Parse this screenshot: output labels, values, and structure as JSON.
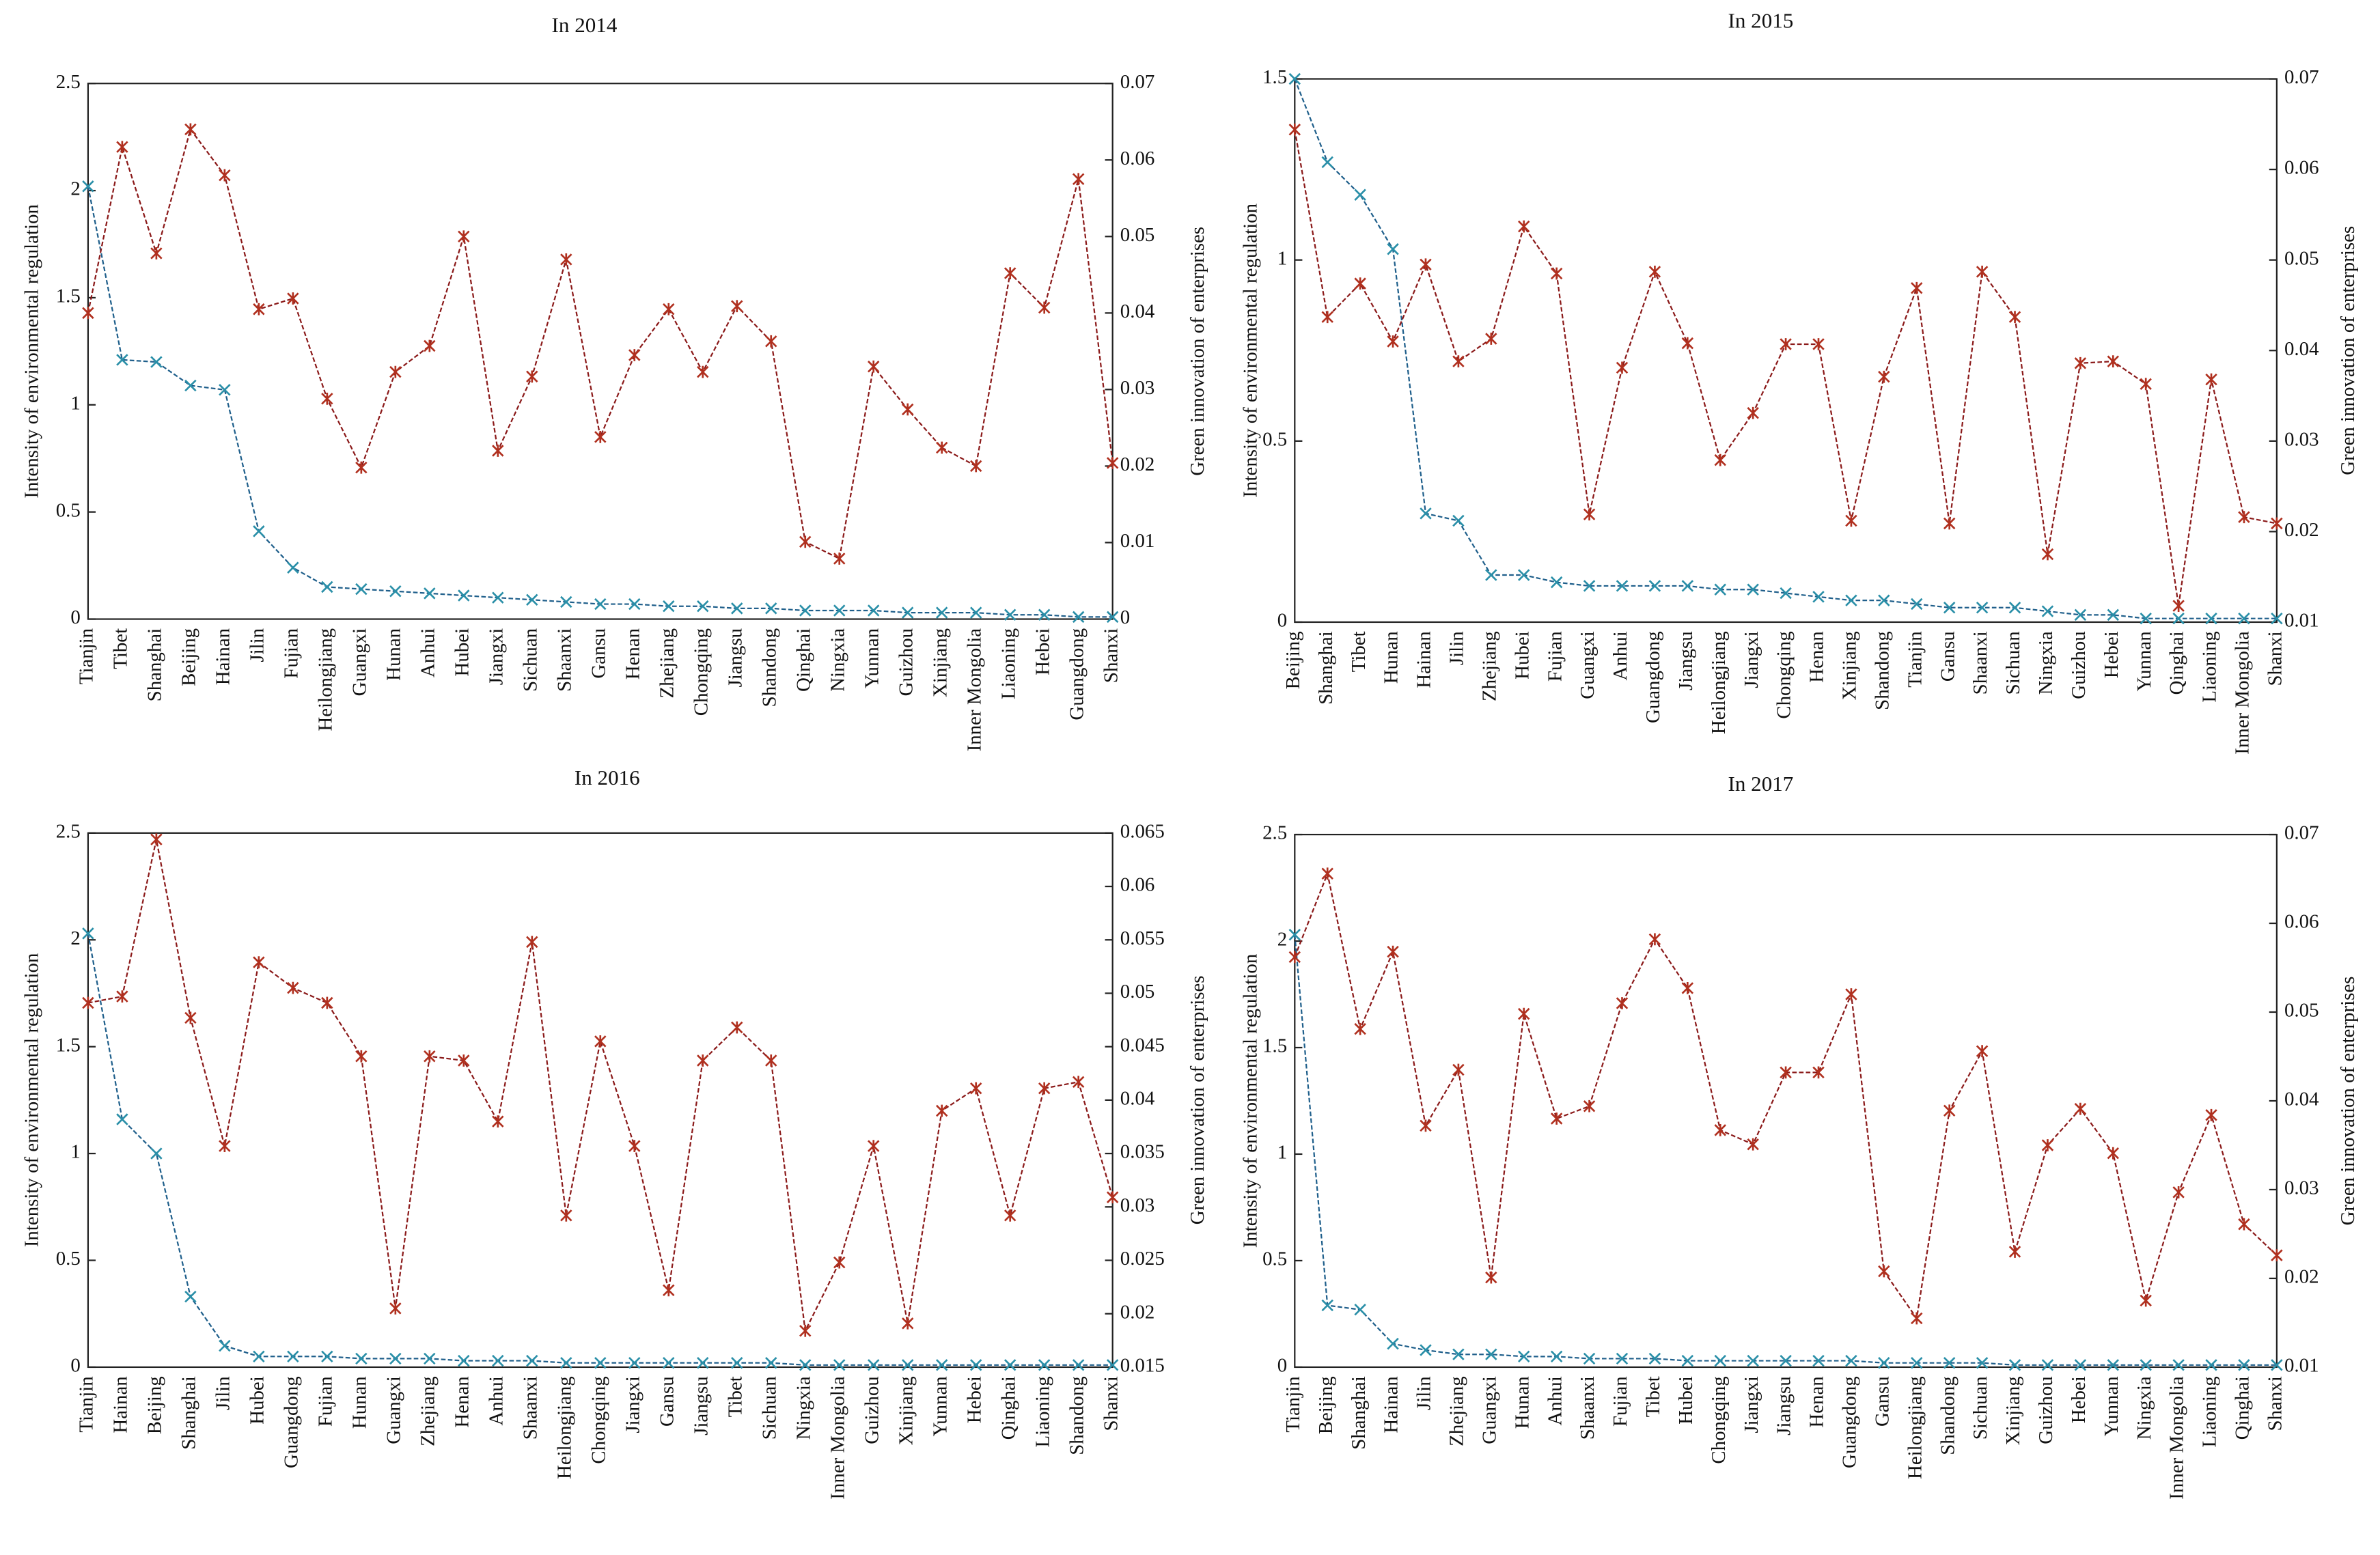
{
  "chart_data": [
    {
      "type": "line",
      "title": "In 2014",
      "ylabel": "Intensity of environmental regulation",
      "y2label": "Green innovation of enterprises",
      "categories": [
        "Tianjin",
        "Tibet",
        "Shanghai",
        "Beijing",
        "Hainan",
        "Jilin",
        "Fujian",
        "Heilongjiang",
        "Guangxi",
        "Hunan",
        "Anhui",
        "Hubei",
        "Jiangxi",
        "Sichuan",
        "Shaanxi",
        "Gansu",
        "Henan",
        "Zhejiang",
        "Chongqing",
        "Jiangsu",
        "Shandong",
        "Qinghai",
        "Ningxia",
        "Yunnan",
        "Guizhou",
        "Xinjiang",
        "Inner Mongolia",
        "Liaoning",
        "Hebei",
        "Guangdong",
        "Shanxi"
      ],
      "series": [
        {
          "color": "#1f5f8b",
          "values": [
            2.02,
            1.21,
            1.2,
            1.09,
            1.07,
            0.41,
            0.24,
            0.15,
            0.14,
            0.13,
            0.12,
            0.11,
            0.1,
            0.09,
            0.08,
            0.07,
            0.07,
            0.06,
            0.06,
            0.05,
            0.05,
            0.04,
            0.04,
            0.04,
            0.03,
            0.03,
            0.03,
            0.02,
            0.02,
            0.01,
            0.01
          ]
        },
        {
          "color": "#8b1a1a",
          "axis": "y2",
          "values": [
            0.04,
            0.0617,
            0.0478,
            0.064,
            0.058,
            0.0405,
            0.0419,
            0.0288,
            0.0198,
            0.0323,
            0.0357,
            0.05,
            0.022,
            0.0317,
            0.047,
            0.0238,
            0.0345,
            0.0405,
            0.0323,
            0.0409,
            0.0363,
            0.0101,
            0.0079,
            0.033,
            0.0274,
            0.0224,
            0.02,
            0.0452,
            0.0407,
            0.0575,
            0.0204
          ]
        }
      ],
      "ylim": [
        0,
        2.5
      ],
      "yticks": [
        0,
        0.5,
        1,
        1.5,
        2,
        2.5
      ],
      "y2lim": [
        0,
        0.07
      ],
      "y2ticks": [
        0,
        0.01,
        0.02,
        0.03,
        0.04,
        0.05,
        0.06,
        0.07
      ]
    },
    {
      "type": "line",
      "title": "In 2015",
      "ylabel": "Intensity of environmental regulation",
      "y2label": "Green innovation of enterprises",
      "categories": [
        "Beijing",
        "Shanghai",
        "Tibet",
        "Hunan",
        "Hainan",
        "Jilin",
        "Zhejiang",
        "Hubei",
        "Fujian",
        "Guangxi",
        "Anhui",
        "Guangdong",
        "Jiangsu",
        "Heilongjiang",
        "Jiangxi",
        "Chongqing",
        "Henan",
        "Xinjiang",
        "Shandong",
        "Tianjin",
        "Gansu",
        "Shaanxi",
        "Sichuan",
        "Ningxia",
        "Guizhou",
        "Hebei",
        "Yunnan",
        "Qinghai",
        "Liaoning",
        "Inner Mongolia",
        "Shanxi"
      ],
      "series": [
        {
          "color": "#1f5f8b",
          "values": [
            1.5,
            1.27,
            1.18,
            1.03,
            0.3,
            0.28,
            0.13,
            0.13,
            0.11,
            0.1,
            0.1,
            0.1,
            0.1,
            0.09,
            0.09,
            0.08,
            0.07,
            0.06,
            0.06,
            0.05,
            0.04,
            0.04,
            0.04,
            0.03,
            0.02,
            0.02,
            0.01,
            0.01,
            0.01,
            0.01,
            0.01
          ]
        },
        {
          "color": "#8b1a1a",
          "axis": "y2",
          "values": [
            0.0644,
            0.0437,
            0.0474,
            0.041,
            0.0495,
            0.0388,
            0.0413,
            0.0537,
            0.0485,
            0.0219,
            0.0381,
            0.0487,
            0.0408,
            0.0279,
            0.0331,
            0.0407,
            0.0407,
            0.0212,
            0.0371,
            0.0469,
            0.0209,
            0.0487,
            0.0437,
            0.0175,
            0.0386,
            0.0388,
            0.0363,
            0.0118,
            0.0368,
            0.0216,
            0.0209
          ]
        }
      ],
      "ylim": [
        0,
        1.5
      ],
      "yticks": [
        0,
        0.5,
        1,
        1.5
      ],
      "y2lim": [
        0.01,
        0.07
      ],
      "y2ticks": [
        0.01,
        0.02,
        0.03,
        0.04,
        0.05,
        0.06,
        0.07
      ]
    },
    {
      "type": "line",
      "title": "In 2016",
      "ylabel": "Intensity of environmental regulation",
      "y2label": "Green innovation of enterprises",
      "categories": [
        "Tianjin",
        "Hainan",
        "Beijing",
        "Shanghai",
        "Jilin",
        "Hubei",
        "Guangdong",
        "Fujian",
        "Hunan",
        "Guangxi",
        "Zhejiang",
        "Henan",
        "Anhui",
        "Shaanxi",
        "Heilongjiang",
        "Chongqing",
        "Jiangxi",
        "Gansu",
        "Jiangsu",
        "Tibet",
        "Sichuan",
        "Ningxia",
        "Inner Mongolia",
        "Guizhou",
        "Xinjiang",
        "Yunnan",
        "Hebei",
        "Qinghai",
        "Liaoning",
        "Shandong",
        "Shanxi"
      ],
      "series": [
        {
          "color": "#1f5f8b",
          "values": [
            2.03,
            1.16,
            1.0,
            0.33,
            0.1,
            0.05,
            0.05,
            0.05,
            0.04,
            0.04,
            0.04,
            0.03,
            0.03,
            0.03,
            0.02,
            0.02,
            0.02,
            0.02,
            0.02,
            0.02,
            0.02,
            0.01,
            0.01,
            0.01,
            0.01,
            0.01,
            0.01,
            0.01,
            0.01,
            0.01,
            0.01
          ]
        },
        {
          "color": "#8b1a1a",
          "axis": "y2",
          "values": [
            0.0491,
            0.0497,
            0.0644,
            0.0477,
            0.0357,
            0.0529,
            0.0505,
            0.0491,
            0.0441,
            0.0205,
            0.0441,
            0.0437,
            0.038,
            0.0548,
            0.0292,
            0.0455,
            0.0357,
            0.0222,
            0.0437,
            0.0468,
            0.0437,
            0.0184,
            0.0248,
            0.0357,
            0.0191,
            0.039,
            0.0411,
            0.0292,
            0.0411,
            0.0417,
            0.0309
          ]
        }
      ],
      "ylim": [
        0,
        2.5
      ],
      "yticks": [
        0,
        0.5,
        1,
        1.5,
        2,
        2.5
      ],
      "y2lim": [
        0.015,
        0.065
      ],
      "y2ticks": [
        0.015,
        0.02,
        0.025,
        0.03,
        0.035,
        0.04,
        0.045,
        0.05,
        0.055,
        0.06,
        0.065
      ]
    },
    {
      "type": "line",
      "title": "In 2017",
      "ylabel": "Intensity of environmental regulation",
      "y2label": "Green innovation of enterprises",
      "categories": [
        "Tianjin",
        "Beijing",
        "Shanghai",
        "Hainan",
        "Jilin",
        "Zhejiang",
        "Guangxi",
        "Hunan",
        "Anhui",
        "Shaanxi",
        "Fujian",
        "Tibet",
        "Hubei",
        "Chongqing",
        "Jiangxi",
        "Jiangsu",
        "Henan",
        "Guangdong",
        "Gansu",
        "Heilongjiang",
        "Shandong",
        "Sichuan",
        "Xinjiang",
        "Guizhou",
        "Hebei",
        "Yunnan",
        "Ningxia",
        "Inner Mongolia",
        "Liaoning",
        "Qinghai",
        "Shanxi"
      ],
      "series": [
        {
          "color": "#1f5f8b",
          "values": [
            2.03,
            0.29,
            0.27,
            0.11,
            0.08,
            0.06,
            0.06,
            0.05,
            0.05,
            0.04,
            0.04,
            0.04,
            0.03,
            0.03,
            0.03,
            0.03,
            0.03,
            0.03,
            0.02,
            0.02,
            0.02,
            0.02,
            0.01,
            0.01,
            0.01,
            0.01,
            0.01,
            0.01,
            0.01,
            0.01,
            0.01
          ]
        },
        {
          "color": "#8b1a1a",
          "axis": "y2",
          "values": [
            0.0562,
            0.0656,
            0.0481,
            0.0568,
            0.0372,
            0.0435,
            0.0201,
            0.0498,
            0.038,
            0.0394,
            0.051,
            0.0582,
            0.0527,
            0.0367,
            0.0351,
            0.0432,
            0.0432,
            0.052,
            0.0208,
            0.0155,
            0.0389,
            0.0456,
            0.023,
            0.035,
            0.0391,
            0.0341,
            0.0175,
            0.0297,
            0.0384,
            0.0261,
            0.0226
          ]
        }
      ],
      "ylim": [
        0,
        2.5
      ],
      "yticks": [
        0,
        0.5,
        1,
        1.5,
        2,
        2.5
      ],
      "y2lim": [
        0.01,
        0.07
      ],
      "y2ticks": [
        0.01,
        0.02,
        0.03,
        0.04,
        0.05,
        0.06,
        0.07
      ]
    }
  ]
}
